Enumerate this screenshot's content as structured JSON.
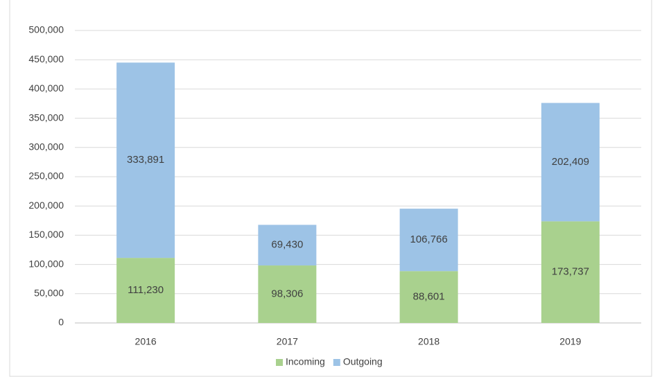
{
  "chart_data": {
    "type": "stacked_bar",
    "categories": [
      "2016",
      "2017",
      "2018",
      "2019"
    ],
    "series": [
      {
        "name": "Incoming",
        "color": "#a9d18e",
        "values": [
          111230,
          98306,
          88601,
          173737
        ],
        "value_labels": [
          "111,230",
          "98,306",
          "88,601",
          "173,737"
        ]
      },
      {
        "name": "Outgoing",
        "color": "#9dc3e6",
        "values": [
          333891,
          69430,
          106766,
          202409
        ],
        "value_labels": [
          "333,891",
          "69,430",
          "106,766",
          "202,409"
        ]
      }
    ],
    "ylim": [
      0,
      500000
    ],
    "yticks": [
      0,
      {
        "value": 50000,
        "label": "50,000"
      },
      {
        "value": 100000,
        "label": "100,000"
      },
      {
        "value": 150000,
        "label": "150,000"
      },
      {
        "value": 200000,
        "label": "200,000"
      },
      {
        "value": 250000,
        "label": "250,000"
      },
      {
        "value": 300000,
        "label": "300,000"
      },
      {
        "value": 350000,
        "label": "350,000"
      },
      {
        "value": 400000,
        "label": "400,000"
      },
      {
        "value": 450000,
        "label": "450,000"
      },
      {
        "value": 500000,
        "label": "500,000"
      }
    ],
    "grid": true,
    "legend": "bottom"
  }
}
